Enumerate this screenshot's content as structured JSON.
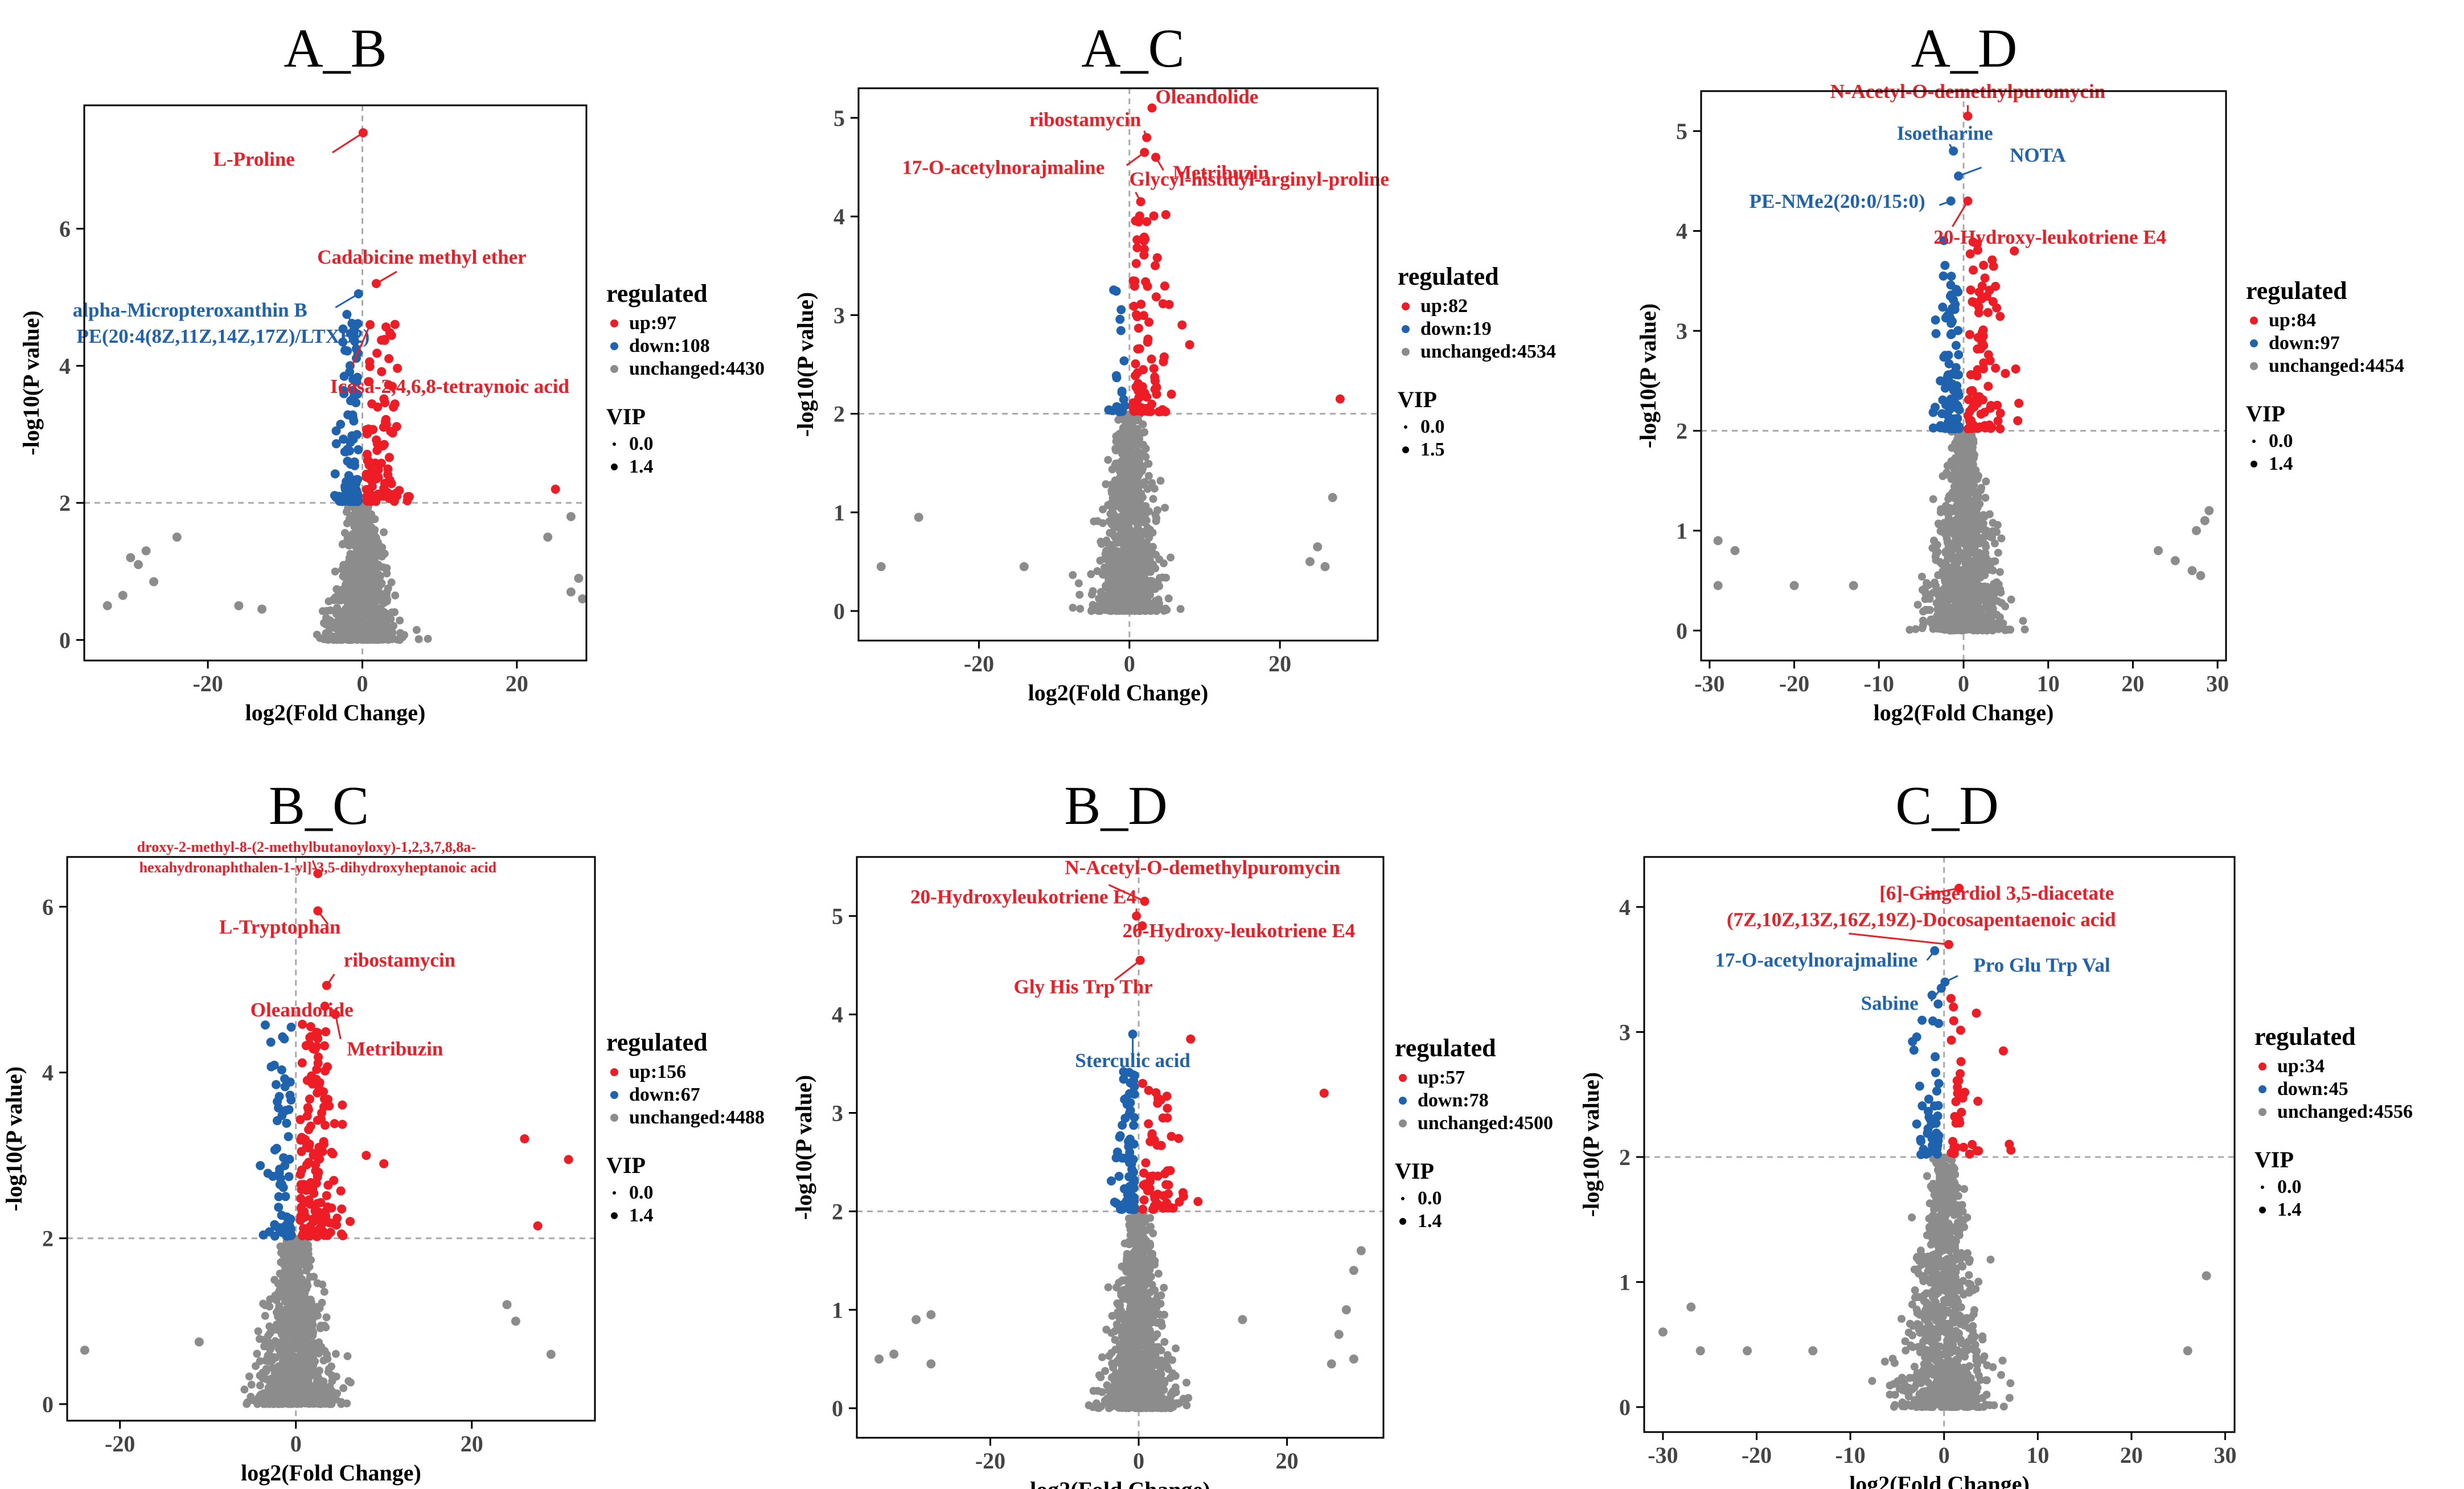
{
  "chart_data": [
    {
      "type": "scatter",
      "title": "A_B",
      "xlabel": "log2(Fold Change)",
      "ylabel": "-log10(P value)",
      "xlim": [
        -36,
        29
      ],
      "ylim": [
        -0.3,
        7.8
      ],
      "xticks": [
        -20,
        0,
        20
      ],
      "yticks": [
        0,
        2,
        4,
        6
      ],
      "pThreshold": 2,
      "legend": {
        "title": "regulated",
        "up": "up:97",
        "down": "down:108",
        "unchanged": "unchanged:4430",
        "vipTitle": "VIP",
        "vipMin": "0.0",
        "vipMax": "1.4"
      },
      "seed": 11,
      "upCount": 97,
      "downCount": 108,
      "grayCount": 1000,
      "maxP": 4.6,
      "outliers": [
        [
          25,
          2.2,
          "up"
        ],
        [
          -24,
          1.5,
          "gray"
        ],
        [
          -28,
          1.3,
          "gray"
        ],
        [
          -30,
          1.2,
          "gray"
        ],
        [
          -29,
          1.1,
          "gray"
        ],
        [
          -27,
          0.85,
          "gray"
        ],
        [
          -31,
          0.65,
          "gray"
        ],
        [
          -33,
          0.5,
          "gray"
        ],
        [
          27,
          1.8,
          "gray"
        ],
        [
          24,
          1.5,
          "gray"
        ],
        [
          28,
          0.9,
          "gray"
        ],
        [
          27,
          0.7,
          "gray"
        ],
        [
          28.5,
          0.6,
          "gray"
        ],
        [
          -16,
          0.5,
          "gray"
        ],
        [
          -13,
          0.45,
          "gray"
        ]
      ],
      "labels": [
        {
          "text": "L-Proline",
          "x": 0.1,
          "y": 7.4,
          "color": "up",
          "anchor": "end",
          "dx": -120,
          "dy": 58
        },
        {
          "text": "Cadabicine methyl ether",
          "x": 1.8,
          "y": 5.2,
          "color": "up",
          "anchor": "middle",
          "dx": 80,
          "dy": -35
        },
        {
          "text": "alpha-Micropteroxanthin B",
          "x": -0.5,
          "y": 5.05,
          "color": "down",
          "anchor": "end",
          "dx": -90,
          "dy": 40
        },
        {
          "text": "PE(20:4(8Z,11Z,14Z,17Z)/LTXB2)",
          "x": -2.0,
          "y": 4.75,
          "color": "down",
          "anchor": "end",
          "dx": 40,
          "dy": 50
        },
        {
          "text": "Icosa-2,4,6,8-tetraynoic acid",
          "x": 1.0,
          "y": 4.6,
          "color": "up",
          "anchor": "start",
          "dx": -70,
          "dy": 120
        }
      ]
    },
    {
      "type": "scatter",
      "title": "A_C",
      "xlabel": "log2(Fold Change)",
      "ylabel": "-log10(P value)",
      "xlim": [
        -36,
        33
      ],
      "ylim": [
        -0.3,
        5.3
      ],
      "xticks": [
        -20,
        0,
        20
      ],
      "yticks": [
        0,
        1,
        2,
        3,
        4,
        5
      ],
      "pThreshold": 2,
      "legend": {
        "title": "regulated",
        "up": "up:82",
        "down": "down:19",
        "unchanged": "unchanged:4534",
        "vipTitle": "VIP",
        "vipMin": "0.0",
        "vipMax": "1.5"
      },
      "seed": 23,
      "upCount": 82,
      "downCount": 19,
      "grayCount": 1000,
      "maxP": 4.0,
      "outliers": [
        [
          28,
          2.15,
          "up"
        ],
        [
          7,
          2.9,
          "up"
        ],
        [
          8,
          2.7,
          "up"
        ],
        [
          -28,
          0.95,
          "gray"
        ],
        [
          -33,
          0.45,
          "gray"
        ],
        [
          27,
          1.15,
          "gray"
        ],
        [
          25,
          0.65,
          "gray"
        ],
        [
          24,
          0.5,
          "gray"
        ],
        [
          26,
          0.45,
          "gray"
        ],
        [
          -14,
          0.45,
          "gray"
        ]
      ],
      "labels": [
        {
          "text": "Oleandolide",
          "x": 3.0,
          "y": 5.1,
          "color": "up",
          "anchor": "start",
          "dx": 6,
          "dy": -8
        },
        {
          "text": "ribostamycin",
          "x": 2.3,
          "y": 4.8,
          "color": "up",
          "anchor": "end",
          "dx": -10,
          "dy": -20
        },
        {
          "text": "17-O-acetylnorajmaline",
          "x": 2.0,
          "y": 4.65,
          "color": "up",
          "anchor": "end",
          "dx": -70,
          "dy": 38
        },
        {
          "text": "Metribuzin",
          "x": 3.5,
          "y": 4.6,
          "color": "up",
          "anchor": "start",
          "dx": 30,
          "dy": 38
        },
        {
          "text": "Glycyl-histidyl-arginyl-proline",
          "x": 1.5,
          "y": 4.15,
          "color": "up",
          "anchor": "start",
          "dx": -20,
          "dy": -28
        }
      ]
    },
    {
      "type": "scatter",
      "title": "A_D",
      "xlabel": "log2(Fold Change)",
      "ylabel": "-log10(P value)",
      "xlim": [
        -31,
        31
      ],
      "ylim": [
        -0.3,
        5.4
      ],
      "xticks": [
        -30,
        -20,
        -10,
        0,
        10,
        20,
        30
      ],
      "yticks": [
        0,
        1,
        2,
        3,
        4,
        5
      ],
      "pThreshold": 2,
      "legend": {
        "title": "regulated",
        "up": "up:84",
        "down": "down:97",
        "unchanged": "unchanged:4454",
        "vipTitle": "VIP",
        "vipMin": "0.0",
        "vipMax": "1.4"
      },
      "seed": 37,
      "upCount": 84,
      "downCount": 97,
      "grayCount": 1000,
      "maxP": 3.9,
      "outliers": [
        [
          6,
          3.8,
          "up"
        ],
        [
          -29,
          0.9,
          "gray"
        ],
        [
          -27,
          0.8,
          "gray"
        ],
        [
          -29,
          0.45,
          "gray"
        ],
        [
          -20,
          0.45,
          "gray"
        ],
        [
          -13,
          0.45,
          "gray"
        ],
        [
          23,
          0.8,
          "gray"
        ],
        [
          25,
          0.7,
          "gray"
        ],
        [
          27,
          0.6,
          "gray"
        ],
        [
          29,
          1.2,
          "gray"
        ],
        [
          28.5,
          1.1,
          "gray"
        ],
        [
          27.5,
          1.0,
          "gray"
        ],
        [
          28,
          0.55,
          "gray"
        ]
      ],
      "labels": [
        {
          "text": "N-Acetyl-O-demethylpuromycin",
          "x": 0.5,
          "y": 5.15,
          "color": "up",
          "anchor": "middle",
          "dx": 0,
          "dy": -32
        },
        {
          "text": "Isoetharine",
          "x": -1.2,
          "y": 4.8,
          "color": "down",
          "anchor": "middle",
          "dx": -15,
          "dy": -20
        },
        {
          "text": "NOTA",
          "x": -0.6,
          "y": 4.55,
          "color": "down",
          "anchor": "start",
          "dx": 90,
          "dy": -25
        },
        {
          "text": "PE-NMe2(20:0/15:0)",
          "x": -1.5,
          "y": 4.3,
          "color": "down",
          "anchor": "end",
          "dx": -45,
          "dy": 12
        },
        {
          "text": "20-Hydroxy-leukotriene E4",
          "x": 0.5,
          "y": 4.3,
          "color": "up",
          "anchor": "start",
          "dx": -60,
          "dy": 75
        }
      ]
    },
    {
      "type": "scatter",
      "title": "B_C",
      "xlabel": "log2(Fold Change)",
      "ylabel": "-log10(P value)",
      "xlim": [
        -26,
        34
      ],
      "ylim": [
        -0.2,
        6.6
      ],
      "xticks": [
        -20,
        0,
        20
      ],
      "yticks": [
        0,
        2,
        4,
        6
      ],
      "pThreshold": 2,
      "legend": {
        "title": "regulated",
        "up": "up:156",
        "down": "down:67",
        "unchanged": "unchanged:4488",
        "vipTitle": "VIP",
        "vipMin": "0.0",
        "vipMax": "1.4"
      },
      "seed": 53,
      "upCount": 156,
      "downCount": 67,
      "grayCount": 1000,
      "maxP": 4.6,
      "outliers": [
        [
          26,
          3.2,
          "up"
        ],
        [
          31,
          2.95,
          "up"
        ],
        [
          10,
          2.9,
          "up"
        ],
        [
          8,
          3.0,
          "up"
        ],
        [
          27.5,
          2.15,
          "up"
        ],
        [
          -24,
          0.65,
          "gray"
        ],
        [
          -11,
          0.75,
          "gray"
        ],
        [
          24,
          1.2,
          "gray"
        ],
        [
          25,
          1.0,
          "gray"
        ],
        [
          29,
          0.6,
          "gray"
        ]
      ],
      "labels": [
        {
          "text": "droxy-2-methyl-8-(2-methylbutanoyloxy)-1,2,3,7,8,8a-",
          "x": 2.5,
          "y": 6.4,
          "color": "up",
          "anchor": "middle",
          "dx": -20,
          "dy": -38,
          "small": true
        },
        {
          "text": "hexahydronaphthalen-1-yl]-3,5-dihydroxyheptanoic acid",
          "x": 2.5,
          "y": 6.4,
          "color": "up",
          "anchor": "middle",
          "dx": 0,
          "dy": -2,
          "small": true,
          "noDot": true
        },
        {
          "text": "L-Tryptophan",
          "x": 2.5,
          "y": 5.95,
          "color": "up",
          "anchor": "end",
          "dx": 40,
          "dy": 40
        },
        {
          "text": "ribostamycin",
          "x": 3.5,
          "y": 5.05,
          "color": "up",
          "anchor": "start",
          "dx": 30,
          "dy": -33
        },
        {
          "text": "Oleandolide",
          "x": 3.3,
          "y": 4.8,
          "color": "up",
          "anchor": "end",
          "dx": 50,
          "dy": 18
        },
        {
          "text": "Metribuzin",
          "x": 4.5,
          "y": 4.7,
          "color": "up",
          "anchor": "start",
          "dx": 20,
          "dy": 72
        }
      ]
    },
    {
      "type": "scatter",
      "title": "B_D",
      "xlabel": "log2(Fold Change)",
      "ylabel": "-log10(P value)",
      "xlim": [
        -38,
        33
      ],
      "ylim": [
        -0.3,
        5.6
      ],
      "xticks": [
        -20,
        0,
        20
      ],
      "yticks": [
        0,
        1,
        2,
        3,
        4,
        5
      ],
      "pThreshold": 2,
      "legend": {
        "title": "regulated",
        "up": "up:57",
        "down": "down:78",
        "unchanged": "unchanged:4500",
        "vipTitle": "VIP",
        "vipMin": "0.0",
        "vipMax": "1.4"
      },
      "seed": 71,
      "upCount": 57,
      "downCount": 78,
      "grayCount": 1000,
      "maxP": 3.4,
      "outliers": [
        [
          25,
          3.2,
          "up"
        ],
        [
          7,
          3.75,
          "up"
        ],
        [
          8,
          2.1,
          "up"
        ],
        [
          -28,
          0.95,
          "gray"
        ],
        [
          -30,
          0.9,
          "gray"
        ],
        [
          -33,
          0.55,
          "gray"
        ],
        [
          -35,
          0.5,
          "gray"
        ],
        [
          -28,
          0.45,
          "gray"
        ],
        [
          30,
          1.6,
          "gray"
        ],
        [
          29,
          1.4,
          "gray"
        ],
        [
          28,
          1.0,
          "gray"
        ],
        [
          27,
          0.75,
          "gray"
        ],
        [
          26,
          0.45,
          "gray"
        ],
        [
          29,
          0.5,
          "gray"
        ],
        [
          14,
          0.9,
          "gray"
        ]
      ],
      "labels": [
        {
          "text": "N-Acetyl-O-demethylpuromycin",
          "x": 0.8,
          "y": 5.15,
          "color": "up",
          "anchor": "start",
          "dx": -140,
          "dy": -48
        },
        {
          "text": "20-Hydroxyleukotriene E4",
          "x": -0.3,
          "y": 5.0,
          "color": "up",
          "anchor": "end",
          "dx": 0,
          "dy": -22
        },
        {
          "text": "20-Hydroxy-leukotriene E4",
          "x": 0.5,
          "y": 4.9,
          "color": "up",
          "anchor": "start",
          "dx": -35,
          "dy": 20
        },
        {
          "text": "Gly His Trp Thr",
          "x": 0.2,
          "y": 4.55,
          "color": "up",
          "anchor": "middle",
          "dx": -100,
          "dy": 58
        },
        {
          "text": "Sterculic acid",
          "x": -0.8,
          "y": 3.8,
          "color": "down",
          "anchor": "middle",
          "dx": 0,
          "dy": 58
        }
      ]
    },
    {
      "type": "scatter",
      "title": "C_D",
      "xlabel": "log2(Fold Change)",
      "ylabel": "-log10(P value)",
      "xlim": [
        -32,
        31
      ],
      "ylim": [
        -0.2,
        4.4
      ],
      "xticks": [
        -30,
        -20,
        -10,
        0,
        10,
        20,
        30
      ],
      "yticks": [
        0,
        1,
        2,
        3,
        4
      ],
      "pThreshold": 2,
      "legend": {
        "title": "regulated",
        "up": "up:34",
        "down": "down:45",
        "unchanged": "unchanged:4556",
        "vipTitle": "VIP",
        "vipMin": "0.0",
        "vipMax": "1.4"
      },
      "seed": 89,
      "upCount": 34,
      "downCount": 45,
      "grayCount": 1000,
      "maxP": 3.3,
      "outliers": [
        [
          28,
          1.05,
          "gray"
        ],
        [
          -27,
          0.8,
          "gray"
        ],
        [
          -30,
          0.6,
          "gray"
        ],
        [
          -26,
          0.45,
          "gray"
        ],
        [
          -21,
          0.45,
          "gray"
        ],
        [
          -14,
          0.45,
          "gray"
        ],
        [
          26,
          0.45,
          "gray"
        ],
        [
          3,
          2.1,
          "up"
        ],
        [
          1.0,
          3.2,
          "up"
        ]
      ],
      "labels": [
        {
          "text": "[6]-Gingerdiol 3,5-diacetate",
          "x": 1.6,
          "y": 4.15,
          "color": "up",
          "anchor": "start",
          "dx": -140,
          "dy": 20
        },
        {
          "text": "(7Z,10Z,13Z,16Z,19Z)-Docosapentaenoic acid",
          "x": 0.5,
          "y": 3.7,
          "color": "up",
          "anchor": "start",
          "dx": -390,
          "dy": -32
        },
        {
          "text": "17-O-acetylnorajmaline",
          "x": -1.0,
          "y": 3.65,
          "color": "down",
          "anchor": "end",
          "dx": -30,
          "dy": 28
        },
        {
          "text": "Pro Glu Trp Val",
          "x": 0.1,
          "y": 3.4,
          "color": "down",
          "anchor": "start",
          "dx": 50,
          "dy": -18
        },
        {
          "text": "Sabine",
          "x": -0.3,
          "y": 3.35,
          "color": "down",
          "anchor": "end",
          "dx": -40,
          "dy": 38
        }
      ]
    }
  ],
  "colors": {
    "up": "#ee1c25",
    "down": "#1f62ae",
    "gray": "#8c8c8c",
    "axis": "#000000",
    "threshold": "#aaaaaa"
  }
}
